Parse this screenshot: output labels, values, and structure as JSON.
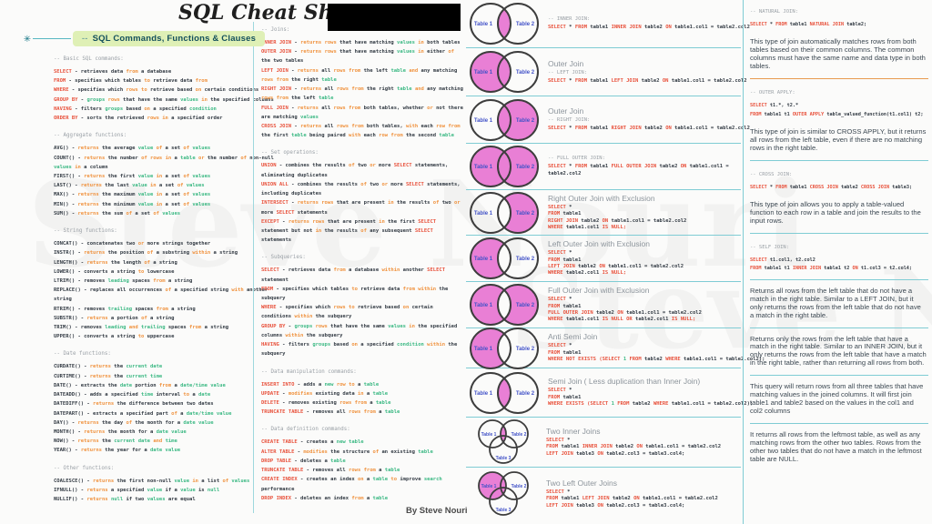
{
  "title": "SQL Cheat Sheet",
  "author": "By Steve Nouri",
  "watermark": "Steve Nouri",
  "badge": {
    "prefix": "--",
    "label": "SQL Commands, Functions & Clauses"
  },
  "colors": {
    "keyword_red": "#e8503a",
    "orange": "#f0923e",
    "green": "#3cb984",
    "blue": "#5b8def",
    "text_dark": "#333b44",
    "comment_gray": "#9aa0a6",
    "badge_bg": "#dff0b6",
    "badge_text": "#14505c",
    "accent_teal": "#7fccd4",
    "venn_fill": "#e97fd5",
    "venn_stroke": "#3d3d3d",
    "venn_label": "#4353c8"
  },
  "left_column": {
    "sections": [
      {
        "header": "-- Basic SQL commands:",
        "lines": [
          "SELECT - retrieves data from a database",
          "FROM - specifies which tables to retrieve data from",
          "WHERE - specifies which rows to retrieve based on certain conditions",
          "GROUP BY - groups rows that have the same values in the specified columns",
          "HAVING - filters groups based on a specified condition",
          "ORDER BY - sorts the retrieved rows in a specified order"
        ]
      },
      {
        "header": "-- Aggregate functions:",
        "lines": [
          "AVG() - returns the average value of a set of values",
          "COUNT() - returns the number of rows in a table or the number of non-null values in a column",
          "FIRST() - returns the first value in a set of values",
          "LAST() - returns the last value in a set of values",
          "MAX() - returns the maximum value in a set of values",
          "MIN() - returns the minimum value in a set of values",
          "SUM() - returns the sum of a set of values"
        ]
      },
      {
        "header": "-- String functions:",
        "lines": [
          "CONCAT() - concatenates two or more strings together",
          "INSTR() - returns the position of a substring within a string",
          "LENGTH() - returns the length of a string",
          "LOWER() - converts a string to lowercase",
          "LTRIM() - removes leading spaces from a string",
          "REPLACE() - replaces all occurrences of a specified string with another string",
          "RTRIM() - removes trailing spaces from a string",
          "SUBSTR() - returns a portion of a string",
          "TRIM() - removes leading and trailing spaces from a string",
          "UPPER() - converts a string to uppercase"
        ]
      },
      {
        "header": "-- Date functions:",
        "lines": [
          "CURDATE() - returns the current date",
          "CURTIME() - returns the current time",
          "DATE() - extracts the date portion from a date/time value",
          "DATEADD() - adds a specified time interval to a date",
          "DATEDIFF() - returns the difference between two dates",
          "DATEPART() - extracts a specified part of a date/time value",
          "DAY() - returns the day of the month for a date value",
          "MONTH() - returns the month for a date value",
          "NOW() - returns the current date and time",
          "YEAR() - returns the year for a date value"
        ]
      },
      {
        "header": "-- Other functions:",
        "lines": [
          "COALESCE() - returns the first non-null value in a list of values",
          "IFNULL() - returns a specified value if a value is null",
          "NULLIF() - returns null if two values are equal"
        ]
      }
    ]
  },
  "middle_column": {
    "sections": [
      {
        "header": "-- Joins:",
        "lines": [
          "INNER JOIN - returns rows that have matching values in both tables",
          "OUTER JOIN - returns rows that have matching values in either of the two tables",
          "LEFT JOIN - returns all rows from the left table and any matching rows from the right table",
          "RIGHT JOIN - returns all rows from the right table and any matching rows from the left table",
          "FULL JOIN - returns all rows from both tables, whether or not there are matching values",
          "CROSS JOIN - returns all rows from both tables, with each row from the first table being paired with each row from the second table"
        ]
      },
      {
        "header": "-- Set operations:",
        "lines": [
          "UNION - combines the results of two or more SELECT statements, eliminating duplicates",
          "UNION ALL - combines the results of two or more SELECT statements, including duplicates",
          "INTERSECT - returns rows that are present in the results of two or more SELECT statements",
          "EXCEPT - returns rows that are present in the first SELECT statement but not in the results of any subsequent SELECT statements"
        ]
      },
      {
        "header": "-- Subqueries:",
        "lines": [
          "SELECT - retrieves data from a database within another SELECT statement",
          "FROM - specifies which tables to retrieve data from within the subquery",
          "WHERE - specifies which rows to retrieve based on certain conditions within the subquery",
          "GROUP BY - groups rows that have the same values in the specified columns within the subquery",
          "HAVING - filters groups based on a specified condition within the subquery"
        ]
      },
      {
        "header": "-- Data manipulation commands:",
        "lines": [
          "INSERT INTO - adds a new row to a table",
          "UPDATE - modifies existing data in a table",
          "DELETE - removes existing rows from a table",
          "TRUNCATE TABLE - removes all rows from a table"
        ]
      },
      {
        "header": "-- Data definition commands:",
        "lines": [
          "CREATE TABLE - creates a new table",
          "ALTER TABLE - modifies the structure of an existing table",
          "DROP TABLE - deletes a table",
          "TRUNCATE TABLE - removes all rows from a table",
          "CREATE INDEX - creates an index on a table to improve search performance",
          "DROP INDEX - deletes an index from a table"
        ]
      }
    ]
  },
  "venn_rows": [
    {
      "title": "",
      "comment": "-- INNER JOIN:",
      "venn": "intersection",
      "labels": [
        "Table 1",
        "Table 2"
      ],
      "code": [
        "SELECT * FROM table1 INNER JOIN table2 ON table1.col1 = table2.col2"
      ]
    },
    {
      "title": "Outer Join",
      "comment": "-- LEFT JOIN:",
      "venn": "left-all",
      "labels": [
        "Table 1",
        "Table 2"
      ],
      "code": [
        "SELECT * FROM table1 LEFT JOIN table2 ON table1.col1 = table2.col2"
      ]
    },
    {
      "title": "Outer Join",
      "comment": "-- RIGHT JOIN:",
      "venn": "right-all",
      "labels": [
        "Table 1",
        "Table 2"
      ],
      "code": [
        "SELECT * FROM table1 RIGHT JOIN table2 ON table1.col1 = table2.col2"
      ]
    },
    {
      "title": "",
      "comment": "-- FULL OUTER JOIN:",
      "venn": "both",
      "labels": [
        "Table 1",
        "Table 2"
      ],
      "code": [
        "SELECT * FROM table1 FULL OUTER JOIN table2 ON table1.col1 =",
        "table2.col2"
      ]
    },
    {
      "title": "Right Outer Join with Exclusion",
      "comment": "",
      "venn": "right-excl",
      "labels": [
        "Table 1",
        "Table 2"
      ],
      "code": [
        "SELECT *",
        "FROM table1",
        "RIGHT JOIN table2 ON table1.col1 = table2.col2",
        "WHERE table1.col1 IS NULL;"
      ]
    },
    {
      "title": "Left Outer Join with Exclusion",
      "comment": "",
      "venn": "left-excl",
      "labels": [
        "Table 1",
        "Table 2"
      ],
      "code": [
        "SELECT *",
        "FROM table1",
        "LEFT JOIN table2 ON table1.col1 = table2.col2",
        "WHERE table2.col1 IS NULL;"
      ]
    },
    {
      "title": "Full Outer Join with Exclusion",
      "comment": "",
      "venn": "both-excl",
      "labels": [
        "Table 1",
        "Table 2"
      ],
      "code": [
        "SELECT *",
        "FROM table1",
        "FULL OUTER JOIN table2 ON table1.col1 = table2.col2",
        "WHERE table1.col1 IS NULL OR table2.col1 IS NULL;"
      ]
    },
    {
      "title": "Anti Semi Join",
      "comment": "",
      "venn": "left-excl",
      "labels": [
        "Table 1",
        "Table 2"
      ],
      "code": [
        "SELECT *",
        "FROM table1",
        "WHERE NOT EXISTS (SELECT 1 FROM table2 WHERE table1.col1 = table2.col2);"
      ]
    },
    {
      "title": "Semi Join ( Less duplication than Inner Join)",
      "comment": "",
      "venn": "intersection",
      "labels": [
        "Table 1",
        "Table 2"
      ],
      "code": [
        "SELECT *",
        "FROM table1",
        "WHERE EXISTS (SELECT 1 FROM table2 WHERE table1.col1 = table2.col2);"
      ]
    },
    {
      "title": "Two Inner Joins",
      "comment": "",
      "venn": "three-center",
      "labels": [
        "Table 1",
        "Table 2",
        "Table 3"
      ],
      "code": [
        "SELECT *",
        "FROM table1 INNER JOIN table2 ON table1.col1 = table2.col2",
        "LEFT JOIN table3 ON table2.col3 = table3.col4;"
      ]
    },
    {
      "title": "Two Left Outer Joins",
      "comment": "",
      "venn": "three-left",
      "labels": [
        "Table 1",
        "Table 2",
        "Table 3"
      ],
      "code": [
        "SELECT *",
        "FROM table1 LEFT JOIN table2 ON table1.col1 = table2.col2",
        "LEFT JOIN table3 ON table2.col3 = table3.col4;"
      ]
    }
  ],
  "right_column": {
    "sections": [
      {
        "type": "code",
        "comment": "-- NATURAL JOIN:",
        "code": [
          "SELECT * FROM table1 NATURAL JOIN table2;"
        ]
      },
      {
        "type": "text",
        "text": "This type of join automatically matches rows from both tables based on their common columns. The common columns must have the same name and data type in both tables."
      },
      {
        "type": "code",
        "comment": "-- OUTER APPLY:",
        "code": [
          "SELECT t1.*, t2.*",
          "FROM table1 t1 OUTER APPLY table_valued_function(t1.col1) t2;"
        ]
      },
      {
        "type": "text",
        "text": "This type of join is similar to CROSS APPLY, but it returns all rows from the left table, even if there are no matching rows in the right table."
      },
      {
        "type": "code",
        "comment": "-- CROSS JOIN:",
        "code": [
          "SELECT * FROM table1 CROSS JOIN table2 CROSS JOIN table3;"
        ]
      },
      {
        "type": "text",
        "text": "This type of join allows you to apply a table-valued function to each row in a table and join the results to the input rows."
      },
      {
        "type": "code",
        "comment": "-- SELF JOIN:",
        "code": [
          "SELECT t1.col1, t2.col2",
          "FROM table1 t1 INNER JOIN table1 t2 ON t1.col3 = t2.col4;"
        ]
      },
      {
        "type": "text",
        "text": "Returns all rows from the left table that do not have a match in the right table. Similar to a LEFT JOIN, but it only returns the rows from the left table that do not have a match in the right table."
      },
      {
        "type": "text",
        "text": "Returns only the rows from the left table that have a match in the right table. Similar to an INNER JOIN, but it only returns the rows from the left table that have a match in the right table, rather than returning all rows from both."
      },
      {
        "type": "text",
        "text": "This query will return rows from all three tables that have matching values in the joined columns. It will first join table1 and table2 based on the values in the col1 and col2 columns"
      },
      {
        "type": "text",
        "text": "It returns all rows from the leftmost table, as well as any matching rows from the other two tables. Rows from the other two tables that do not have a match in the leftmost table are NULL."
      }
    ]
  }
}
